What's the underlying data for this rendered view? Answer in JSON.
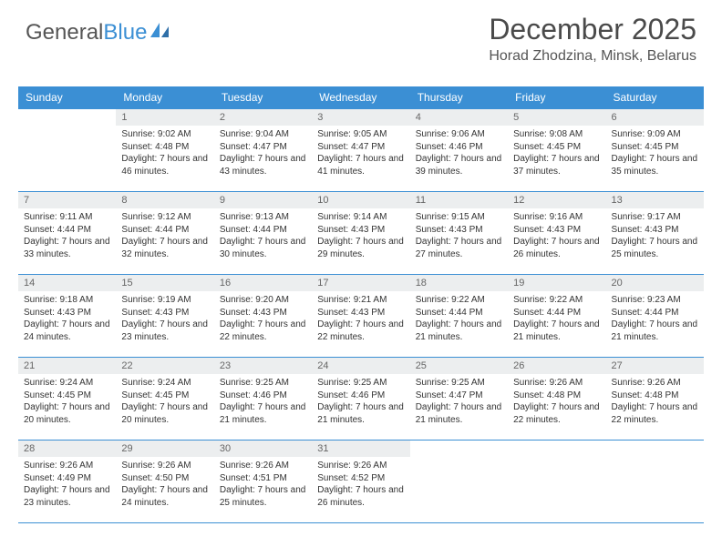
{
  "brand": {
    "part1": "General",
    "part2": "Blue"
  },
  "title": "December 2025",
  "location": "Horad Zhodzina, Minsk, Belarus",
  "colors": {
    "accent": "#3b8fd4",
    "row_bg": "#eceeef",
    "text": "#333333",
    "muted": "#666666",
    "background": "#ffffff"
  },
  "typography": {
    "title_fontsize": 32,
    "location_fontsize": 16,
    "header_fontsize": 12,
    "cell_fontsize": 10
  },
  "day_headers": [
    "Sunday",
    "Monday",
    "Tuesday",
    "Wednesday",
    "Thursday",
    "Friday",
    "Saturday"
  ],
  "weeks": [
    [
      null,
      {
        "n": "1",
        "sr": "9:02 AM",
        "ss": "4:48 PM",
        "dl": "7 hours and 46 minutes."
      },
      {
        "n": "2",
        "sr": "9:04 AM",
        "ss": "4:47 PM",
        "dl": "7 hours and 43 minutes."
      },
      {
        "n": "3",
        "sr": "9:05 AM",
        "ss": "4:47 PM",
        "dl": "7 hours and 41 minutes."
      },
      {
        "n": "4",
        "sr": "9:06 AM",
        "ss": "4:46 PM",
        "dl": "7 hours and 39 minutes."
      },
      {
        "n": "5",
        "sr": "9:08 AM",
        "ss": "4:45 PM",
        "dl": "7 hours and 37 minutes."
      },
      {
        "n": "6",
        "sr": "9:09 AM",
        "ss": "4:45 PM",
        "dl": "7 hours and 35 minutes."
      }
    ],
    [
      {
        "n": "7",
        "sr": "9:11 AM",
        "ss": "4:44 PM",
        "dl": "7 hours and 33 minutes."
      },
      {
        "n": "8",
        "sr": "9:12 AM",
        "ss": "4:44 PM",
        "dl": "7 hours and 32 minutes."
      },
      {
        "n": "9",
        "sr": "9:13 AM",
        "ss": "4:44 PM",
        "dl": "7 hours and 30 minutes."
      },
      {
        "n": "10",
        "sr": "9:14 AM",
        "ss": "4:43 PM",
        "dl": "7 hours and 29 minutes."
      },
      {
        "n": "11",
        "sr": "9:15 AM",
        "ss": "4:43 PM",
        "dl": "7 hours and 27 minutes."
      },
      {
        "n": "12",
        "sr": "9:16 AM",
        "ss": "4:43 PM",
        "dl": "7 hours and 26 minutes."
      },
      {
        "n": "13",
        "sr": "9:17 AM",
        "ss": "4:43 PM",
        "dl": "7 hours and 25 minutes."
      }
    ],
    [
      {
        "n": "14",
        "sr": "9:18 AM",
        "ss": "4:43 PM",
        "dl": "7 hours and 24 minutes."
      },
      {
        "n": "15",
        "sr": "9:19 AM",
        "ss": "4:43 PM",
        "dl": "7 hours and 23 minutes."
      },
      {
        "n": "16",
        "sr": "9:20 AM",
        "ss": "4:43 PM",
        "dl": "7 hours and 22 minutes."
      },
      {
        "n": "17",
        "sr": "9:21 AM",
        "ss": "4:43 PM",
        "dl": "7 hours and 22 minutes."
      },
      {
        "n": "18",
        "sr": "9:22 AM",
        "ss": "4:44 PM",
        "dl": "7 hours and 21 minutes."
      },
      {
        "n": "19",
        "sr": "9:22 AM",
        "ss": "4:44 PM",
        "dl": "7 hours and 21 minutes."
      },
      {
        "n": "20",
        "sr": "9:23 AM",
        "ss": "4:44 PM",
        "dl": "7 hours and 21 minutes."
      }
    ],
    [
      {
        "n": "21",
        "sr": "9:24 AM",
        "ss": "4:45 PM",
        "dl": "7 hours and 20 minutes."
      },
      {
        "n": "22",
        "sr": "9:24 AM",
        "ss": "4:45 PM",
        "dl": "7 hours and 20 minutes."
      },
      {
        "n": "23",
        "sr": "9:25 AM",
        "ss": "4:46 PM",
        "dl": "7 hours and 21 minutes."
      },
      {
        "n": "24",
        "sr": "9:25 AM",
        "ss": "4:46 PM",
        "dl": "7 hours and 21 minutes."
      },
      {
        "n": "25",
        "sr": "9:25 AM",
        "ss": "4:47 PM",
        "dl": "7 hours and 21 minutes."
      },
      {
        "n": "26",
        "sr": "9:26 AM",
        "ss": "4:48 PM",
        "dl": "7 hours and 22 minutes."
      },
      {
        "n": "27",
        "sr": "9:26 AM",
        "ss": "4:48 PM",
        "dl": "7 hours and 22 minutes."
      }
    ],
    [
      {
        "n": "28",
        "sr": "9:26 AM",
        "ss": "4:49 PM",
        "dl": "7 hours and 23 minutes."
      },
      {
        "n": "29",
        "sr": "9:26 AM",
        "ss": "4:50 PM",
        "dl": "7 hours and 24 minutes."
      },
      {
        "n": "30",
        "sr": "9:26 AM",
        "ss": "4:51 PM",
        "dl": "7 hours and 25 minutes."
      },
      {
        "n": "31",
        "sr": "9:26 AM",
        "ss": "4:52 PM",
        "dl": "7 hours and 26 minutes."
      },
      null,
      null,
      null
    ]
  ],
  "labels": {
    "sunrise": "Sunrise:",
    "sunset": "Sunset:",
    "daylight": "Daylight:"
  }
}
